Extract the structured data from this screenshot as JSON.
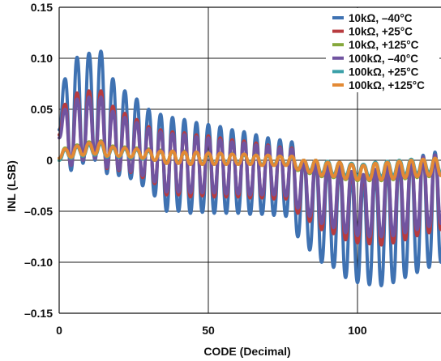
{
  "chart_data": {
    "type": "line",
    "title": "",
    "xlabel": "CODE (Decimal)",
    "ylabel": "INL (LSB)",
    "xlim": [
      0,
      128
    ],
    "ylim": [
      -0.15,
      0.15
    ],
    "grid": true,
    "legend_position": "top-right",
    "x_ticks": [
      0,
      50,
      100
    ],
    "x_tick_labels": [
      "0",
      "50",
      "100"
    ],
    "y_ticks": [
      0.15,
      0.1,
      0.05,
      0,
      -0.05,
      -0.1,
      -0.15
    ],
    "y_tick_labels": [
      "0.15",
      "0.10",
      "0.05",
      "0",
      "–0.05",
      "–0.10",
      "–0.15"
    ],
    "x": [
      0,
      2,
      4,
      6,
      8,
      10,
      12,
      14,
      16,
      18,
      20,
      22,
      24,
      26,
      28,
      30,
      32,
      34,
      36,
      38,
      40,
      42,
      44,
      46,
      48,
      50,
      52,
      54,
      56,
      58,
      60,
      62,
      64,
      66,
      68,
      70,
      72,
      74,
      76,
      78,
      80,
      82,
      84,
      86,
      88,
      90,
      92,
      94,
      96,
      98,
      100,
      102,
      104,
      106,
      108,
      110,
      112,
      114,
      116,
      118,
      120,
      122,
      124,
      126,
      128
    ],
    "series": [
      {
        "name": "10kΩ, –40°C",
        "color": "#3f72b2",
        "values": [
          0.03,
          0.08,
          -0.01,
          0.101,
          -0.003,
          0.105,
          0.0,
          0.107,
          -0.013,
          0.08,
          -0.015,
          0.068,
          -0.018,
          0.06,
          -0.025,
          0.05,
          -0.035,
          0.045,
          -0.05,
          0.042,
          -0.05,
          0.04,
          -0.052,
          0.037,
          -0.051,
          0.035,
          -0.052,
          0.033,
          -0.052,
          0.03,
          -0.052,
          0.028,
          -0.053,
          0.025,
          -0.053,
          0.022,
          -0.054,
          0.02,
          -0.055,
          0.018,
          -0.075,
          0.0,
          -0.088,
          -0.002,
          -0.1,
          -0.008,
          -0.105,
          -0.01,
          -0.115,
          -0.018,
          -0.12,
          -0.023,
          -0.122,
          -0.015,
          -0.123,
          -0.01,
          -0.12,
          -0.005,
          -0.115,
          0.0,
          -0.11,
          0.005,
          -0.105,
          0.008,
          -0.1
        ]
      },
      {
        "name": "10kΩ, +25°C",
        "color": "#b83b3f",
        "values": [
          0.025,
          0.055,
          -0.005,
          0.066,
          0.0,
          0.068,
          0.002,
          0.068,
          -0.008,
          0.053,
          -0.01,
          0.046,
          -0.012,
          0.04,
          -0.017,
          0.033,
          -0.023,
          0.03,
          -0.034,
          0.028,
          -0.034,
          0.027,
          -0.036,
          0.025,
          -0.035,
          0.024,
          -0.036,
          0.022,
          -0.036,
          0.02,
          -0.036,
          0.019,
          -0.037,
          0.017,
          -0.037,
          0.015,
          -0.038,
          0.013,
          -0.038,
          0.012,
          -0.052,
          0.0,
          -0.06,
          -0.001,
          -0.068,
          -0.005,
          -0.072,
          -0.007,
          -0.078,
          -0.012,
          -0.081,
          -0.016,
          -0.082,
          -0.01,
          -0.083,
          -0.007,
          -0.081,
          -0.003,
          -0.078,
          0.0,
          -0.074,
          0.003,
          -0.071,
          0.005,
          -0.068
        ]
      },
      {
        "name": "10kΩ, +125°C",
        "color": "#86a83c",
        "values": [
          0.0,
          0.012,
          0.002,
          0.015,
          0.004,
          0.018,
          0.006,
          0.019,
          0.004,
          0.014,
          0.004,
          0.013,
          0.003,
          0.012,
          0.002,
          0.011,
          0.0,
          0.01,
          -0.003,
          0.009,
          -0.003,
          0.009,
          -0.004,
          0.008,
          -0.004,
          0.008,
          -0.004,
          0.007,
          -0.004,
          0.007,
          -0.004,
          0.006,
          -0.004,
          0.006,
          -0.005,
          0.005,
          -0.005,
          0.005,
          -0.005,
          0.004,
          -0.01,
          0.0,
          -0.013,
          0.0,
          -0.016,
          -0.002,
          -0.017,
          -0.002,
          -0.019,
          -0.004,
          -0.02,
          -0.005,
          -0.02,
          -0.003,
          -0.02,
          -0.002,
          -0.019,
          -0.001,
          -0.018,
          0.0,
          -0.017,
          0.001,
          -0.016,
          0.002,
          -0.015
        ]
      },
      {
        "name": "100kΩ, –40°C",
        "color": "#7154a0",
        "values": [
          0.022,
          0.05,
          -0.005,
          0.06,
          0.0,
          0.062,
          0.002,
          0.062,
          -0.007,
          0.048,
          -0.009,
          0.042,
          -0.011,
          0.037,
          -0.015,
          0.031,
          -0.021,
          0.028,
          -0.031,
          0.026,
          -0.031,
          0.025,
          -0.032,
          0.023,
          -0.032,
          0.022,
          -0.032,
          0.02,
          -0.033,
          0.018,
          -0.033,
          0.017,
          -0.034,
          0.015,
          -0.034,
          0.014,
          -0.034,
          0.012,
          -0.035,
          0.011,
          -0.047,
          0.0,
          -0.055,
          -0.001,
          -0.062,
          -0.005,
          -0.066,
          -0.006,
          -0.071,
          -0.011,
          -0.074,
          -0.014,
          -0.075,
          -0.009,
          -0.075,
          -0.006,
          -0.074,
          -0.003,
          -0.071,
          0.0,
          -0.068,
          0.003,
          -0.065,
          0.005,
          -0.062
        ]
      },
      {
        "name": "100kΩ, +25°C",
        "color": "#3aa0a8",
        "values": [
          0.0,
          0.01,
          0.002,
          0.013,
          0.004,
          0.015,
          0.005,
          0.016,
          0.003,
          0.012,
          0.003,
          0.011,
          0.002,
          0.01,
          0.001,
          0.009,
          0.0,
          0.008,
          -0.002,
          0.008,
          -0.002,
          0.007,
          -0.003,
          0.007,
          -0.003,
          0.006,
          -0.003,
          0.006,
          -0.003,
          0.006,
          -0.003,
          0.005,
          -0.003,
          0.005,
          -0.004,
          0.004,
          -0.004,
          0.004,
          -0.004,
          0.003,
          -0.008,
          0.0,
          -0.01,
          0.0,
          -0.013,
          -0.001,
          -0.014,
          -0.002,
          -0.015,
          -0.003,
          -0.016,
          -0.004,
          -0.016,
          -0.002,
          -0.016,
          -0.001,
          -0.015,
          0.0,
          -0.014,
          0.001,
          -0.013,
          0.001,
          -0.012,
          0.002,
          -0.012
        ]
      },
      {
        "name": "100kΩ, +125°C",
        "color": "#e38a35",
        "values": [
          0.002,
          0.011,
          0.003,
          0.014,
          0.005,
          0.017,
          0.006,
          0.018,
          0.004,
          0.013,
          0.004,
          0.012,
          0.003,
          0.011,
          0.002,
          0.01,
          0.0,
          0.009,
          -0.003,
          0.009,
          -0.003,
          0.008,
          -0.004,
          0.008,
          -0.004,
          0.007,
          -0.004,
          0.007,
          -0.004,
          0.006,
          -0.004,
          0.006,
          -0.004,
          0.005,
          -0.005,
          0.005,
          -0.005,
          0.004,
          -0.005,
          0.004,
          -0.009,
          0.0,
          -0.012,
          0.0,
          -0.015,
          -0.002,
          -0.016,
          -0.002,
          -0.018,
          -0.004,
          -0.019,
          -0.005,
          -0.019,
          -0.003,
          -0.019,
          -0.002,
          -0.018,
          -0.001,
          -0.017,
          0.0,
          -0.016,
          0.001,
          -0.015,
          0.002,
          -0.015
        ]
      }
    ]
  }
}
